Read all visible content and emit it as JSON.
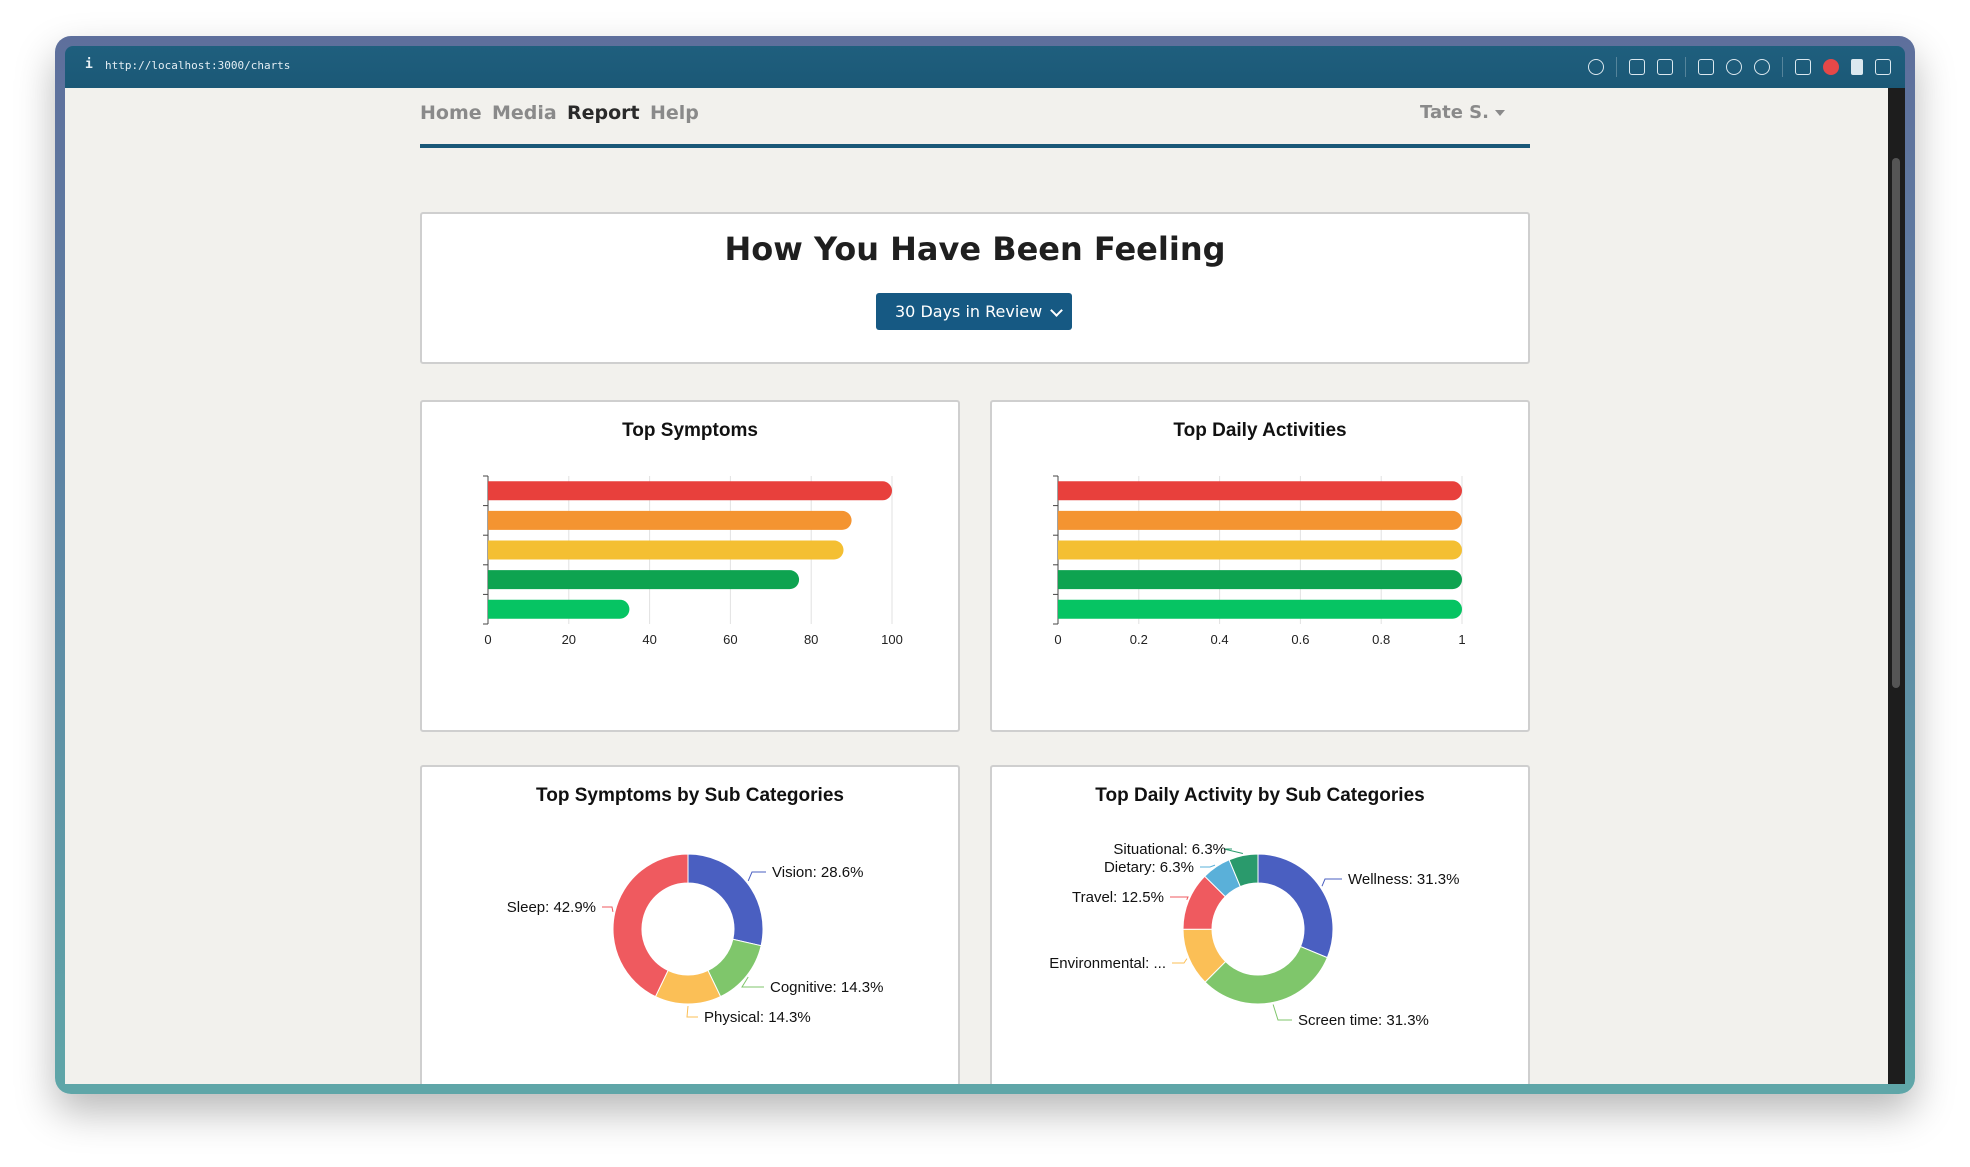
{
  "browser": {
    "info_glyph": "i",
    "url": "http://localhost:3000/charts"
  },
  "nav": {
    "links": [
      "Home",
      "Media",
      "Report",
      "Help"
    ],
    "active": "Report",
    "user": "Tate S."
  },
  "hero": {
    "title": "How You Have Been Feeling",
    "range_select": "30 Days in Review"
  },
  "chart_data": [
    {
      "type": "bar",
      "orientation": "horizontal",
      "title": "Top Symptoms",
      "values": [
        100,
        90,
        88,
        77,
        35
      ],
      "colors": [
        "#e8403c",
        "#f49431",
        "#f4bf32",
        "#0ea350",
        "#06c463"
      ],
      "xlim": [
        0,
        100
      ],
      "xticks": [
        "0",
        "20",
        "40",
        "60",
        "80",
        "100"
      ],
      "grid": true
    },
    {
      "type": "bar",
      "orientation": "horizontal",
      "title": "Top Daily Activities",
      "values": [
        1,
        1,
        1,
        1,
        1
      ],
      "colors": [
        "#e8403c",
        "#f49431",
        "#f4bf32",
        "#0ea350",
        "#06c463"
      ],
      "xlim": [
        0,
        1
      ],
      "xticks": [
        "0",
        "0.2",
        "0.4",
        "0.6",
        "0.8",
        "1"
      ],
      "grid": true
    },
    {
      "type": "pie",
      "donut": true,
      "title": "Top Symptoms by Sub Categories",
      "slices": [
        {
          "label": "Vision: 28.6%",
          "value": 28.6,
          "color": "#4a5fc1"
        },
        {
          "label": "Cognitive: 14.3%",
          "value": 14.3,
          "color": "#7fc66b"
        },
        {
          "label": "Physical: 14.3%",
          "value": 14.3,
          "color": "#fbbf56"
        },
        {
          "label": "Sleep: 42.9%",
          "value": 42.9,
          "color": "#ef5a5f"
        }
      ]
    },
    {
      "type": "pie",
      "donut": true,
      "title": "Top Daily Activity by Sub Categories",
      "slices": [
        {
          "label": "Wellness: 31.3%",
          "value": 31.3,
          "color": "#4a5fc1"
        },
        {
          "label": "Screen time: 31.3%",
          "value": 31.3,
          "color": "#7fc66b"
        },
        {
          "label": "Environmental: ...",
          "value": 12.5,
          "color": "#fbbf56"
        },
        {
          "label": "Travel: 12.5%",
          "value": 12.5,
          "color": "#ef5a5f"
        },
        {
          "label": "Dietary: 6.3%",
          "value": 6.3,
          "color": "#5ab0d9"
        },
        {
          "label": "Situational: 6.3%",
          "value": 6.3,
          "color": "#2a9a6c"
        }
      ]
    }
  ]
}
